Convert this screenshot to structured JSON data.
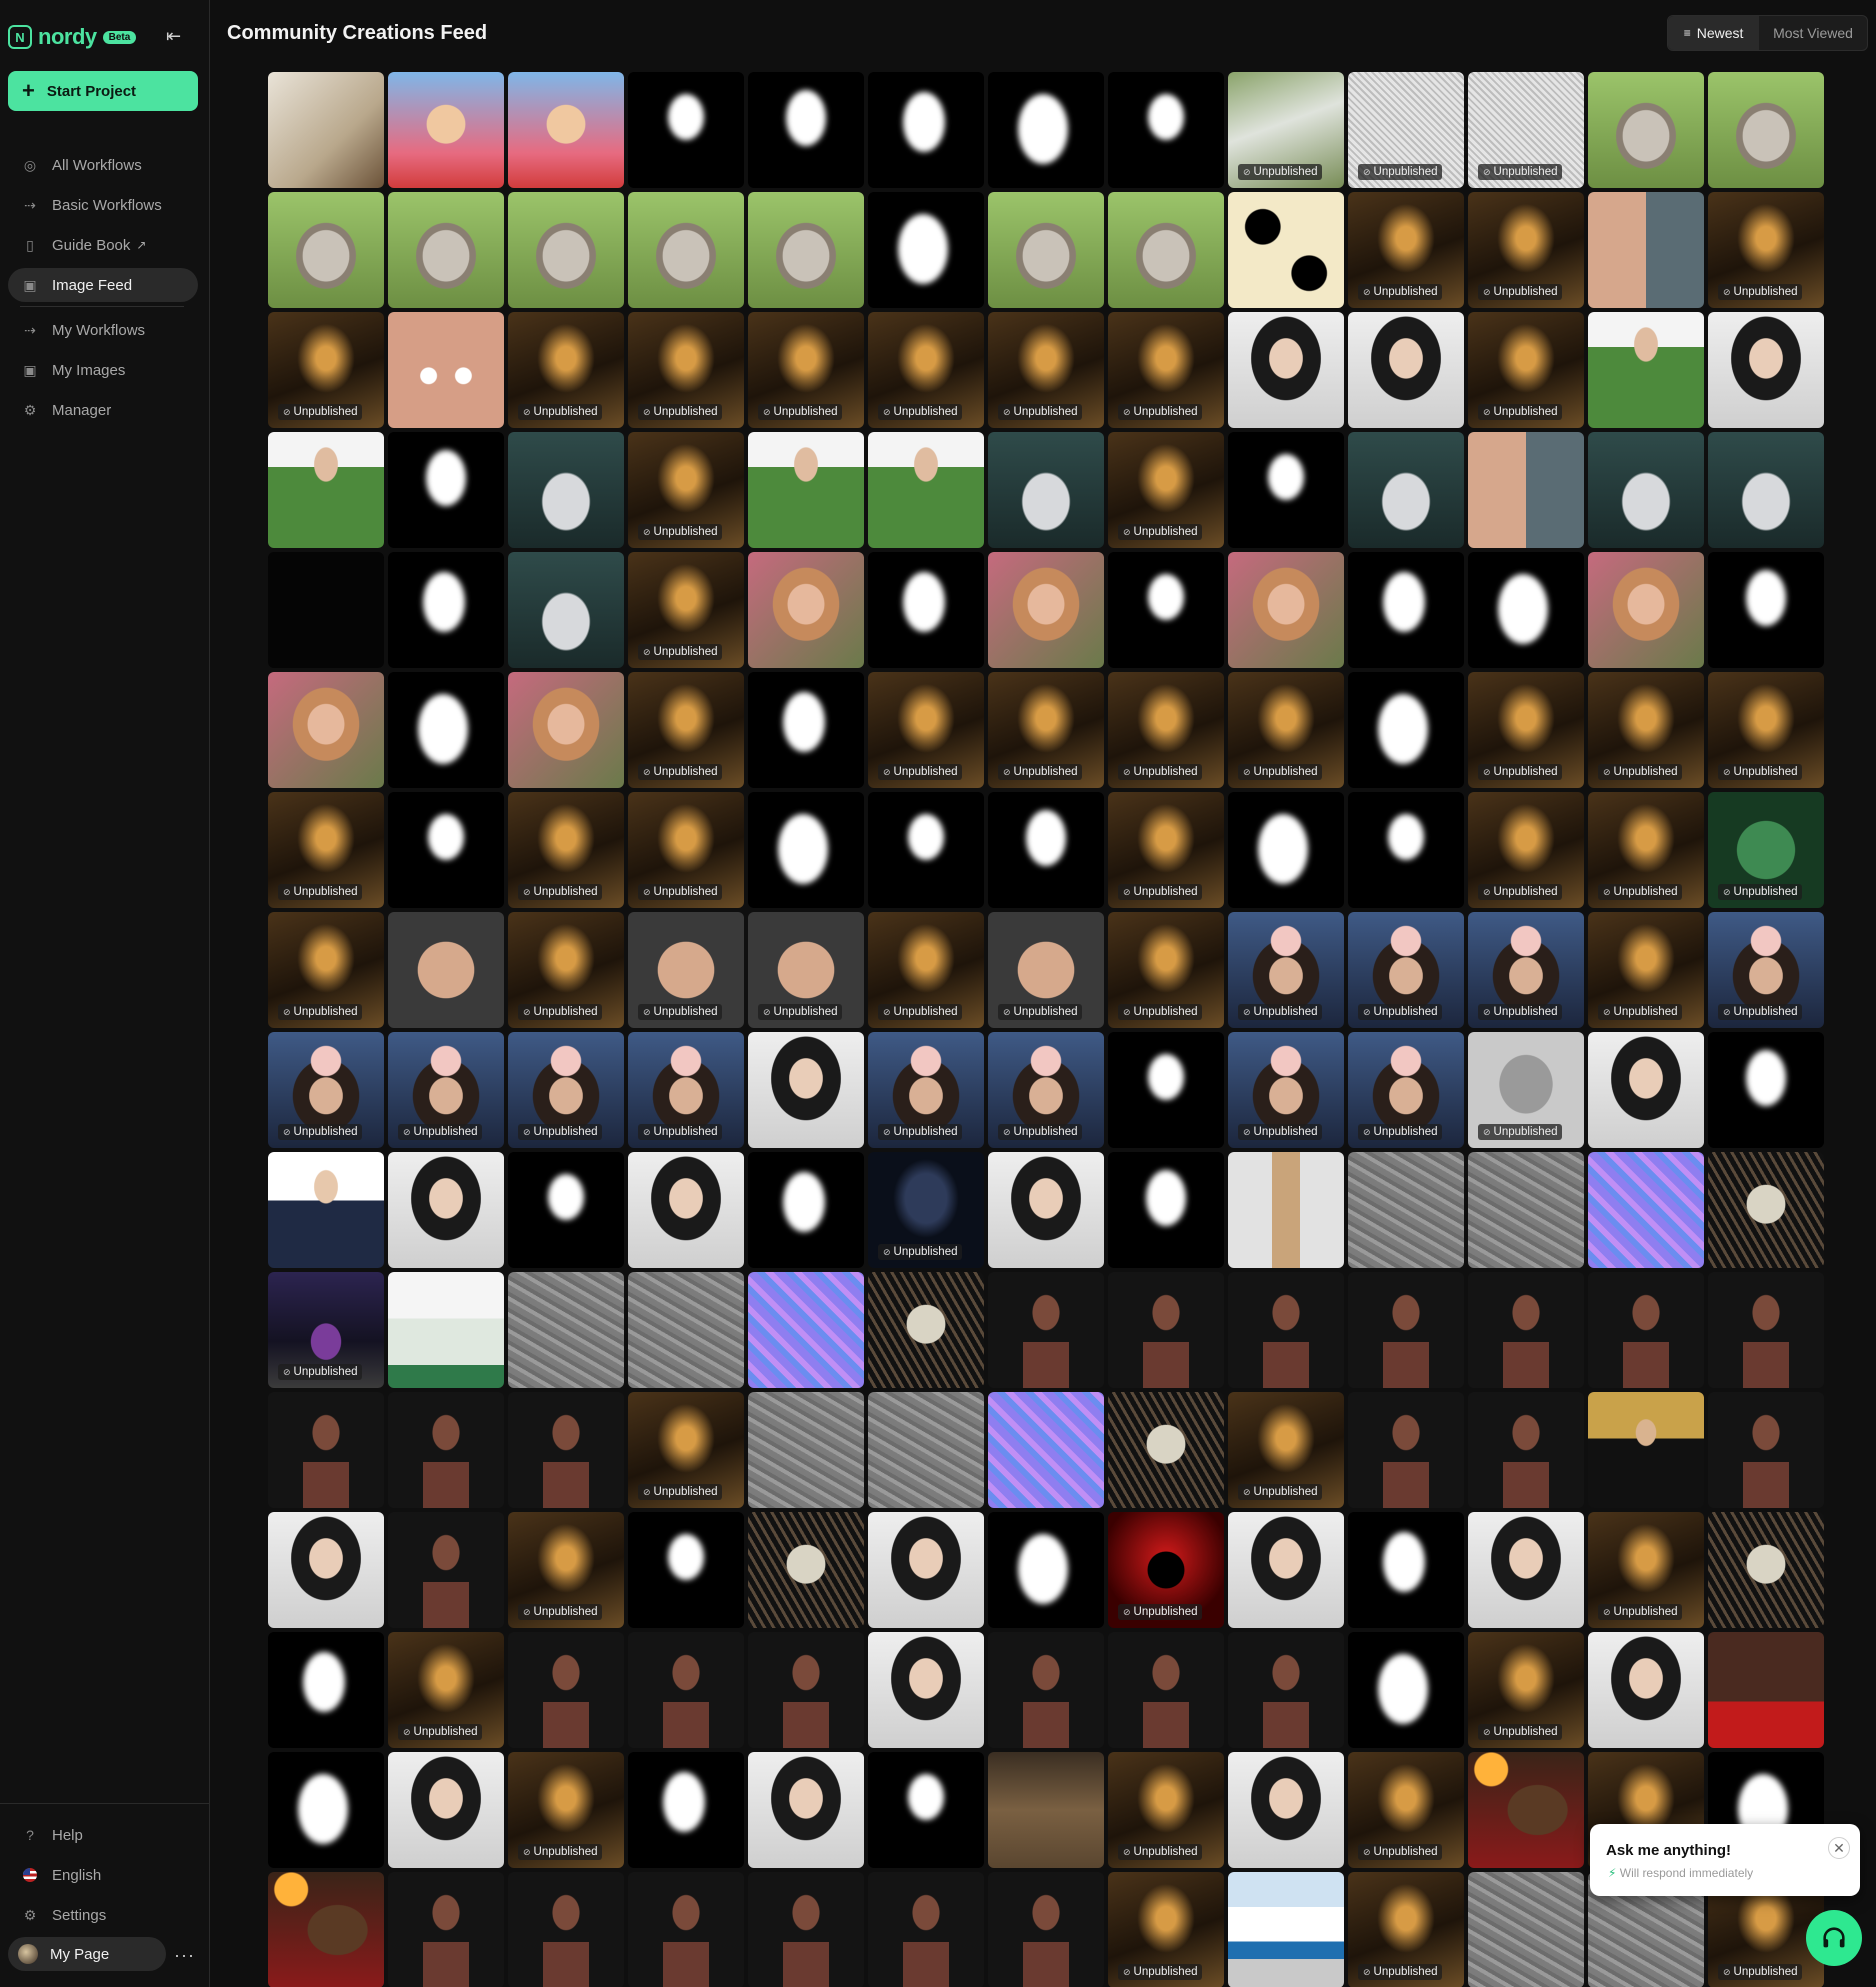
{
  "app": {
    "logo_text": "nordy",
    "beta_label": "Beta"
  },
  "sidebar": {
    "start_project": "Start Project",
    "items": [
      {
        "label": "All Workflows",
        "icon": "compass-icon"
      },
      {
        "label": "Basic Workflows",
        "icon": "flow-icon"
      },
      {
        "label": "Guide Book",
        "icon": "book-icon"
      },
      {
        "label": "Image Feed",
        "icon": "image-icon",
        "active": true
      },
      {
        "label": "My Workflows",
        "icon": "flow-icon"
      },
      {
        "label": "My Images",
        "icon": "image-icon"
      },
      {
        "label": "Manager",
        "icon": "gear-icon"
      }
    ],
    "bottom": [
      {
        "label": "Help",
        "icon": "help-icon"
      },
      {
        "label": "English",
        "icon": "us-flag-icon"
      },
      {
        "label": "Settings",
        "icon": "gear-icon"
      }
    ],
    "my_page": "My Page"
  },
  "header": {
    "title": "Community Creations Feed"
  },
  "sort": {
    "newest": "Newest",
    "most_viewed": "Most Viewed",
    "active": "newest"
  },
  "feed": {
    "badge_label": "Unpublished",
    "columns": 13,
    "tiles": [
      "trophy",
      "cartoon",
      "cartoon",
      "mask",
      "mask",
      "mask",
      "mask",
      "mask",
      "aerialU",
      "sketchU",
      "sketchU",
      "cat",
      "cat",
      "cat",
      "cat",
      "cat",
      "cat",
      "cat",
      "mask",
      "cat",
      "cat",
      "catart",
      "goldU",
      "goldU",
      "couple",
      "goldU",
      "goldU",
      "skin",
      "goldU",
      "goldU",
      "goldU",
      "goldU",
      "goldU",
      "goldU",
      "woman",
      "woman",
      "goldU",
      "green",
      "woman",
      "green",
      "mask",
      "shoe",
      "goldU",
      "green",
      "green",
      "shoe",
      "goldU",
      "mask",
      "shoe",
      "couple",
      "shoe",
      "shoe",
      "black",
      "mask",
      "shoe",
      "goldU",
      "portrait",
      "mask",
      "portrait",
      "mask",
      "portrait",
      "mask",
      "mask",
      "portrait",
      "mask",
      "portrait",
      "mask",
      "portrait",
      "goldU",
      "mask",
      "goldU",
      "goldU",
      "goldU",
      "goldU",
      "mask",
      "goldU",
      "goldU",
      "goldU",
      "goldU",
      "mask",
      "goldU",
      "goldU",
      "mask",
      "mask",
      "mask",
      "goldU",
      "mask",
      "mask",
      "goldU",
      "goldU",
      "greenfaceU",
      "goldU",
      "man",
      "goldU",
      "manU",
      "manU",
      "goldU",
      "manU",
      "goldU",
      "flowerU",
      "flowerU",
      "flowerU",
      "goldU",
      "flowerU",
      "flowerU",
      "flowerU",
      "flowerU",
      "flowerU",
      "woman",
      "flowerU",
      "flowerU",
      "mask",
      "flowerU",
      "flowerU",
      "baldU",
      "woman",
      "mask",
      "suit",
      "woman",
      "mask",
      "woman",
      "mask",
      "darkU",
      "woman",
      "mask",
      "stool",
      "gray",
      "gray",
      "normal",
      "skull",
      "bottleU",
      "book",
      "gray",
      "gray",
      "normal",
      "skull",
      "statue",
      "statue",
      "statue",
      "statue",
      "statue",
      "statue",
      "statue",
      "statue",
      "statue",
      "statue",
      "goldU",
      "gray",
      "gray",
      "normal",
      "skull",
      "goldU",
      "statue",
      "statue",
      "tuxedo",
      "statue",
      "woman",
      "statue",
      "goldU",
      "mask",
      "skull",
      "woman",
      "mask",
      "redU",
      "woman",
      "mask",
      "woman",
      "goldU",
      "skull",
      "mask",
      "goldU",
      "statue",
      "statue",
      "statue",
      "woman",
      "statue",
      "statue",
      "statue",
      "mask",
      "goldU",
      "woman",
      "redcarpet",
      "mask",
      "woman",
      "goldU",
      "mask",
      "woman",
      "mask",
      "room",
      "goldU",
      "woman",
      "goldU",
      "fire",
      "goldU",
      "mask",
      "fire",
      "statue",
      "statue",
      "statue",
      "statue",
      "statue",
      "statue",
      "goldU",
      "building",
      "goldU",
      "gray",
      "gray",
      "goldU"
    ]
  },
  "chat": {
    "title": "Ask me anything!",
    "subtitle": "Will respond immediately"
  },
  "colors": {
    "accent": "#4ce3a0",
    "background": "#0f0f0f",
    "sidebar": "#111111"
  }
}
